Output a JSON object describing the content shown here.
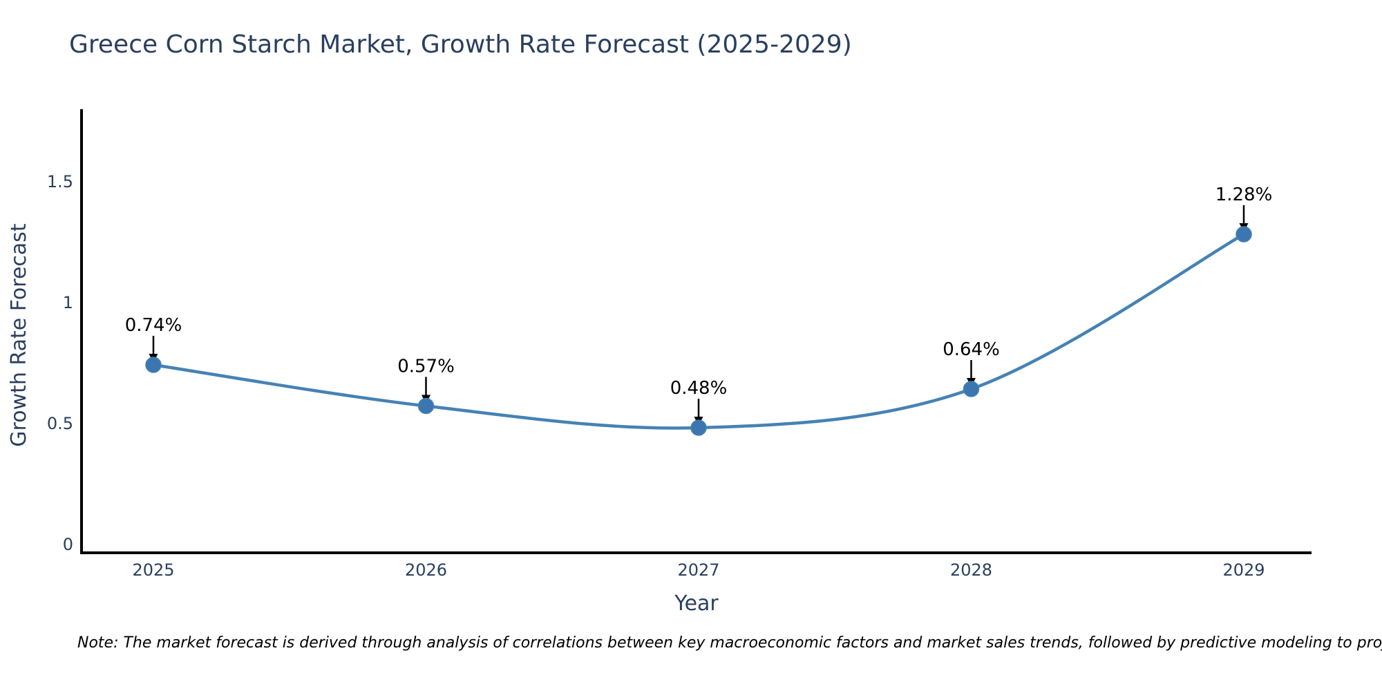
{
  "chart_data": {
    "type": "line",
    "title": "Greece Corn Starch Market, Growth Rate Forecast (2025-2029)",
    "xlabel": "Year",
    "ylabel": "Growth Rate Forecast",
    "x": [
      2025,
      2026,
      2027,
      2028,
      2029
    ],
    "y": [
      0.74,
      0.57,
      0.48,
      0.64,
      1.28
    ],
    "point_labels": [
      "0.74%",
      "0.57%",
      "0.48%",
      "0.64%",
      "1.28%"
    ],
    "xtick_labels": [
      "2025",
      "2026",
      "2027",
      "2028",
      "2029"
    ],
    "ytick_values": [
      0,
      0.5,
      1,
      1.5
    ],
    "ytick_labels": [
      "0",
      "0.5",
      "1",
      "1.5"
    ],
    "ylim": [
      -0.04,
      1.79
    ],
    "xlim": [
      2024.74,
      2029.25
    ],
    "grid": false,
    "legend": "none",
    "line_shape": "spline",
    "annotation_arrows": "black-down-arrows-to-points",
    "colors": {
      "line": "#4682b4",
      "marker": "#3b76b0",
      "axis_line": "#000000",
      "chart_text": "#2a3f5f",
      "annotation_text": "#000000",
      "note_text": "#000000",
      "background": "#ffffff"
    },
    "note": "Note: The market forecast is derived through analysis of correlations between key macroeconomic factors and market sales trends, followed by predictive modeling to project future sales"
  }
}
